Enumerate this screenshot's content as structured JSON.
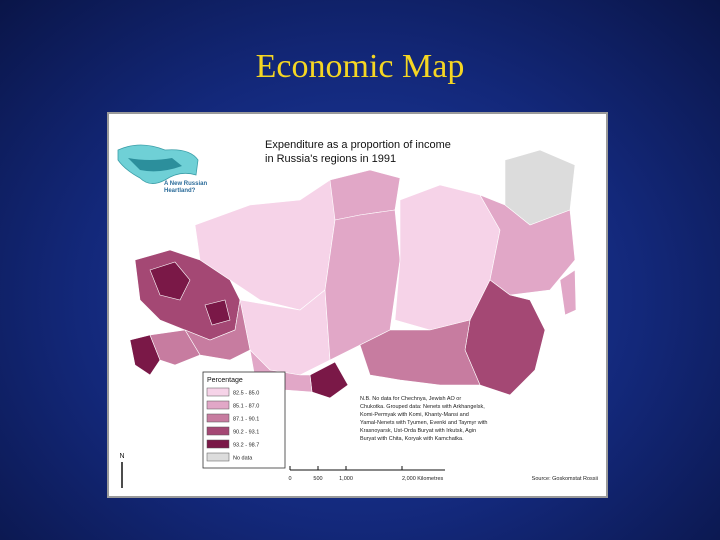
{
  "title": "Economic Map",
  "map": {
    "title_lines": [
      "Expenditure as a proportion of income",
      "in Russia's regions in 1991"
    ],
    "inset_lines": [
      "A New Russian",
      "Heartland?"
    ],
    "legend": {
      "title": "Percentage",
      "items": [
        {
          "label": "82.5 - 85.0",
          "color": "#f6d3e8"
        },
        {
          "label": "85.1 - 87.0",
          "color": "#e1a7c7"
        },
        {
          "label": "87.1 - 90.1",
          "color": "#c77ca0"
        },
        {
          "label": "90.2 - 93.1",
          "color": "#a44874"
        },
        {
          "label": "93.2 - 98.7",
          "color": "#7a1847"
        },
        {
          "label": "No data",
          "color": "#dcdcdc"
        }
      ]
    },
    "note_lines": [
      "N.B. No data for Chechnya, Jewish AO or",
      "Chukotka. Grouped data: Nenets with Arkhangelsk,",
      "Komi-Permyak with Komi, Khanty-Mansi and",
      "Yamal-Nenets with Tyumen, Evenki and Taymyr with",
      "Krasnoyarsk, Ust-Orda Buryat with Irkutsk, Agin",
      "Buryat with Chita, Koryak with Kamchatka."
    ],
    "scale_labels": [
      "0",
      "500",
      "1,000",
      "2,000 Kilometres"
    ],
    "north": "N",
    "source": "Source: Goskomstat Rossii"
  }
}
